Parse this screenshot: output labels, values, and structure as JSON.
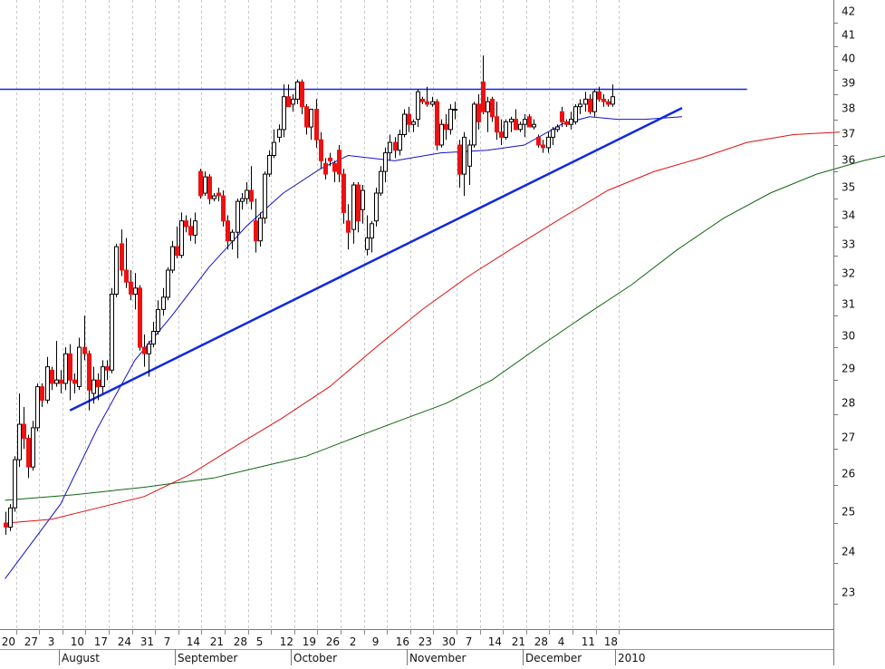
{
  "chart_data": {
    "type": "candlestick",
    "title": "",
    "xlabel": "",
    "ylabel": "",
    "ylim": [
      22.4,
      42.6
    ],
    "y_scale": "log",
    "y_ticks": [
      23,
      24,
      25,
      26,
      27,
      28,
      29,
      30,
      31,
      32,
      33,
      34,
      35,
      36,
      37,
      38,
      39,
      40,
      41,
      42
    ],
    "grid": "vertical-dashed",
    "x_day_ticks": [
      "20",
      "27",
      "3",
      "10",
      "17",
      "24",
      "31",
      "7",
      "14",
      "21",
      "28",
      "5",
      "12",
      "19",
      "26",
      "2",
      "9",
      "16",
      "23",
      "30",
      "7",
      "14",
      "21",
      "28",
      "4",
      "11",
      "18"
    ],
    "x_month_labels": [
      "August",
      "September",
      "October",
      "November",
      "December",
      "2010"
    ],
    "up_color": "#ffffff",
    "down_color": "#ee1111",
    "ohlc": [
      [
        25.0,
        25.3,
        24.7,
        24.9
      ],
      [
        24.9,
        25.5,
        24.8,
        25.4
      ],
      [
        25.4,
        26.8,
        25.3,
        26.7
      ],
      [
        26.7,
        28.6,
        26.5,
        27.7
      ],
      [
        27.7,
        28.2,
        27.0,
        27.3
      ],
      [
        27.3,
        27.4,
        26.2,
        26.5
      ],
      [
        26.5,
        27.8,
        26.4,
        27.6
      ],
      [
        27.6,
        28.9,
        27.5,
        28.8
      ],
      [
        28.8,
        28.9,
        28.2,
        28.4
      ],
      [
        28.4,
        29.7,
        28.3,
        29.4
      ],
      [
        29.3,
        29.4,
        28.7,
        28.9
      ],
      [
        28.9,
        30.2,
        28.8,
        29.0
      ],
      [
        29.0,
        29.3,
        28.6,
        28.9
      ],
      [
        28.9,
        30.0,
        28.7,
        29.8
      ],
      [
        29.8,
        30.1,
        28.4,
        29.0
      ],
      [
        29.0,
        29.2,
        28.6,
        28.9
      ],
      [
        28.8,
        30.3,
        28.7,
        30.0
      ],
      [
        30.0,
        31.0,
        29.6,
        29.8
      ],
      [
        29.8,
        29.9,
        28.1,
        28.7
      ],
      [
        28.6,
        29.4,
        28.3,
        29.0
      ],
      [
        29.0,
        29.2,
        28.4,
        28.8
      ],
      [
        28.8,
        29.6,
        28.6,
        29.4
      ],
      [
        29.4,
        29.6,
        29.0,
        29.3
      ],
      [
        29.3,
        31.9,
        29.2,
        31.7
      ],
      [
        31.7,
        33.4,
        31.6,
        33.3
      ],
      [
        33.4,
        33.9,
        32.3,
        32.5
      ],
      [
        32.5,
        33.6,
        31.9,
        32.1
      ],
      [
        32.1,
        32.5,
        31.5,
        31.7
      ],
      [
        31.7,
        32.4,
        31.2,
        31.9
      ],
      [
        31.9,
        32.0,
        29.9,
        30.0
      ],
      [
        30.0,
        30.4,
        29.4,
        29.8
      ],
      [
        29.8,
        30.2,
        29.1,
        30.1
      ],
      [
        30.1,
        30.8,
        30.0,
        30.5
      ],
      [
        30.5,
        31.5,
        30.4,
        31.2
      ],
      [
        31.2,
        31.9,
        31.0,
        31.6
      ],
      [
        31.6,
        32.6,
        31.5,
        32.5
      ],
      [
        32.5,
        33.5,
        32.4,
        33.3
      ],
      [
        33.3,
        34.0,
        32.9,
        33.0
      ],
      [
        33.0,
        34.5,
        32.9,
        34.2
      ],
      [
        34.2,
        34.4,
        33.8,
        34.0
      ],
      [
        34.0,
        34.3,
        33.5,
        33.7
      ],
      [
        33.7,
        34.5,
        33.4,
        34.2
      ],
      [
        36.0,
        36.1,
        35.0,
        35.1
      ],
      [
        35.2,
        36.0,
        35.1,
        35.8
      ],
      [
        35.8,
        35.9,
        34.8,
        35.0
      ],
      [
        35.0,
        35.2,
        34.9,
        35.1
      ],
      [
        35.2,
        35.4,
        34.9,
        35.1
      ],
      [
        35.1,
        35.3,
        34.0,
        34.2
      ],
      [
        34.2,
        34.4,
        33.2,
        33.5
      ],
      [
        33.5,
        33.9,
        33.2,
        33.8
      ],
      [
        33.8,
        35.0,
        32.9,
        34.9
      ],
      [
        34.9,
        35.2,
        34.6,
        35.0
      ],
      [
        35.0,
        35.6,
        34.8,
        35.3
      ],
      [
        35.3,
        36.2,
        34.6,
        34.9
      ],
      [
        34.2,
        35.0,
        33.1,
        33.5
      ],
      [
        33.5,
        34.5,
        33.3,
        34.3
      ],
      [
        34.3,
        36.0,
        34.1,
        35.9
      ],
      [
        35.9,
        36.8,
        35.8,
        36.6
      ],
      [
        36.6,
        37.6,
        36.5,
        37.1
      ],
      [
        37.3,
        37.8,
        37.1,
        37.6
      ],
      [
        37.6,
        39.4,
        37.3,
        38.9
      ],
      [
        38.9,
        39.4,
        38.6,
        38.5
      ],
      [
        38.6,
        39.0,
        38.3,
        38.8
      ],
      [
        38.8,
        39.6,
        38.6,
        39.5
      ],
      [
        39.5,
        39.6,
        38.2,
        38.5
      ],
      [
        38.5,
        38.6,
        37.4,
        37.7
      ],
      [
        37.7,
        38.4,
        37.2,
        38.4
      ],
      [
        38.4,
        38.8,
        36.9,
        37.2
      ],
      [
        37.2,
        37.5,
        36.1,
        36.4
      ],
      [
        36.3,
        36.5,
        35.7,
        35.9
      ],
      [
        36.5,
        36.7,
        36.2,
        36.4
      ],
      [
        36.3,
        36.4,
        35.6,
        36.0
      ],
      [
        36.8,
        37.0,
        35.6,
        35.9
      ],
      [
        35.9,
        36.1,
        34.1,
        34.5
      ],
      [
        34.2,
        34.8,
        33.2,
        33.8
      ],
      [
        33.9,
        35.6,
        33.4,
        35.5
      ],
      [
        35.5,
        35.6,
        33.8,
        34.2
      ],
      [
        34.6,
        35.5,
        34.1,
        35.3
      ],
      [
        33.2,
        34.4,
        33.0,
        33.6
      ],
      [
        33.6,
        34.2,
        33.1,
        34.1
      ],
      [
        34.2,
        35.4,
        34.0,
        35.2
      ],
      [
        35.2,
        36.2,
        35.1,
        36.0
      ],
      [
        36.0,
        36.9,
        35.6,
        36.7
      ],
      [
        36.7,
        37.4,
        36.4,
        37.1
      ],
      [
        37.1,
        37.3,
        36.5,
        36.8
      ],
      [
        36.8,
        37.6,
        36.6,
        37.4
      ],
      [
        37.4,
        38.4,
        37.3,
        38.2
      ],
      [
        38.2,
        38.5,
        37.5,
        37.8
      ],
      [
        37.8,
        38.0,
        37.5,
        37.9
      ],
      [
        38.0,
        39.2,
        37.7,
        39.1
      ],
      [
        38.8,
        38.9,
        38.6,
        38.7
      ],
      [
        38.7,
        39.3,
        38.5,
        38.6
      ],
      [
        38.6,
        38.9,
        38.5,
        38.7
      ],
      [
        38.7,
        38.8,
        36.8,
        37.0
      ],
      [
        37.0,
        38.0,
        36.9,
        37.8
      ],
      [
        37.8,
        38.2,
        37.2,
        37.6
      ],
      [
        37.6,
        38.6,
        37.4,
        38.4
      ],
      [
        38.4,
        38.7,
        38.0,
        38.4
      ],
      [
        37.0,
        37.2,
        35.4,
        35.9
      ],
      [
        35.9,
        37.5,
        35.1,
        37.3
      ],
      [
        36.2,
        37.2,
        35.5,
        37.0
      ],
      [
        37.0,
        38.7,
        36.9,
        38.6
      ],
      [
        38.6,
        39.0,
        37.6,
        37.9
      ],
      [
        39.5,
        40.6,
        38.2,
        38.3
      ],
      [
        38.3,
        38.9,
        37.5,
        38.7
      ],
      [
        38.8,
        38.9,
        37.9,
        38.1
      ],
      [
        38.1,
        38.7,
        37.2,
        37.5
      ],
      [
        37.5,
        38.0,
        37.0,
        37.3
      ],
      [
        37.3,
        38.0,
        37.2,
        37.9
      ],
      [
        37.9,
        38.1,
        37.5,
        38.0
      ],
      [
        38.0,
        38.4,
        37.6,
        37.6
      ],
      [
        37.6,
        37.9,
        37.5,
        37.8
      ],
      [
        37.8,
        38.2,
        37.3,
        38.0
      ],
      [
        38.1,
        38.2,
        37.7,
        37.7
      ],
      [
        37.7,
        38.0,
        37.6,
        37.8
      ],
      [
        37.3,
        37.4,
        36.9,
        37.0
      ],
      [
        37.0,
        37.2,
        36.7,
        36.9
      ],
      [
        36.9,
        37.5,
        36.7,
        37.3
      ],
      [
        37.3,
        37.7,
        37.0,
        37.6
      ],
      [
        37.6,
        37.8,
        37.5,
        37.7
      ],
      [
        38.3,
        38.5,
        37.7,
        37.9
      ],
      [
        37.9,
        38.0,
        37.7,
        37.8
      ],
      [
        37.8,
        38.3,
        37.6,
        38.0
      ],
      [
        37.9,
        38.6,
        37.8,
        38.5
      ],
      [
        38.5,
        38.8,
        38.2,
        38.6
      ],
      [
        38.6,
        39.1,
        38.3,
        38.8
      ],
      [
        38.8,
        39.0,
        38.2,
        38.3
      ],
      [
        38.3,
        39.2,
        38.1,
        39.1
      ],
      [
        39.1,
        39.3,
        38.7,
        38.8
      ],
      [
        38.8,
        39.0,
        38.5,
        38.7
      ],
      [
        38.7,
        38.8,
        38.5,
        38.6
      ],
      [
        38.6,
        39.4,
        38.5,
        38.9
      ]
    ],
    "moving_averages": [
      {
        "color": "#1010cc",
        "points": [
          [
            0,
            23.6
          ],
          [
            12,
            25.5
          ],
          [
            20,
            27.6
          ],
          [
            28,
            29.6
          ],
          [
            36,
            31.0
          ],
          [
            44,
            32.6
          ],
          [
            52,
            34.0
          ],
          [
            60,
            35.2
          ],
          [
            68,
            36.1
          ],
          [
            74,
            36.6
          ],
          [
            84,
            36.4
          ],
          [
            94,
            36.7
          ],
          [
            104,
            36.8
          ],
          [
            112,
            37.0
          ],
          [
            120,
            37.8
          ],
          [
            126,
            38.1
          ],
          [
            132,
            38.0
          ],
          [
            138,
            38.0
          ],
          [
            146,
            38.1
          ]
        ]
      },
      {
        "color": "#dd1111",
        "points": [
          [
            0,
            25.0
          ],
          [
            10,
            25.1
          ],
          [
            20,
            25.4
          ],
          [
            30,
            25.7
          ],
          [
            40,
            26.3
          ],
          [
            50,
            27.1
          ],
          [
            60,
            27.9
          ],
          [
            70,
            28.8
          ],
          [
            80,
            30.0
          ],
          [
            90,
            31.2
          ],
          [
            100,
            32.3
          ],
          [
            110,
            33.3
          ],
          [
            120,
            34.3
          ],
          [
            130,
            35.3
          ],
          [
            140,
            36.0
          ],
          [
            150,
            36.5
          ],
          [
            160,
            37.1
          ],
          [
            170,
            37.4
          ],
          [
            180,
            37.5
          ]
        ]
      },
      {
        "color": "#116611",
        "points": [
          [
            0,
            25.6
          ],
          [
            15,
            25.75
          ],
          [
            30,
            25.95
          ],
          [
            45,
            26.2
          ],
          [
            55,
            26.5
          ],
          [
            65,
            26.8
          ],
          [
            75,
            27.3
          ],
          [
            85,
            27.8
          ],
          [
            95,
            28.3
          ],
          [
            105,
            29.0
          ],
          [
            115,
            30.0
          ],
          [
            125,
            31.0
          ],
          [
            135,
            32.0
          ],
          [
            145,
            33.2
          ],
          [
            155,
            34.3
          ],
          [
            165,
            35.2
          ],
          [
            175,
            35.9
          ],
          [
            185,
            36.4
          ],
          [
            195,
            36.8
          ],
          [
            205,
            37.1
          ]
        ]
      }
    ],
    "trendlines": [
      {
        "from": [
          14,
          28.1
        ],
        "to": [
          146,
          38.45
        ],
        "color": "#1028e0"
      },
      {
        "from": [
          -6,
          39.2
        ],
        "to": [
          160,
          39.2
        ],
        "color": "#1028e0"
      }
    ]
  }
}
